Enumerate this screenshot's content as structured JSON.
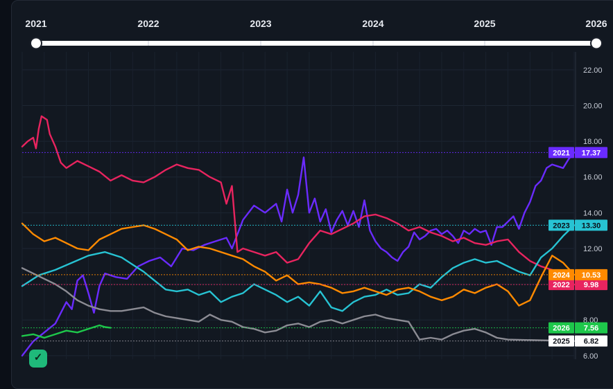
{
  "timeline": {
    "years": [
      "2021",
      "2022",
      "2023",
      "2024",
      "2025",
      "2026"
    ],
    "range_start": "2021",
    "range_end": "2026"
  },
  "colors": {
    "2021": "#6a2bff",
    "2022": "#e8245f",
    "2023": "#27c3d3",
    "2024": "#ff8a00",
    "2025": "#8c8c94",
    "2026": "#1ec84b"
  },
  "chart_data": {
    "type": "line",
    "title": "",
    "xlabel": "",
    "ylabel": "",
    "x_domain": [
      "Jan",
      "Dec"
    ],
    "ylim": [
      5.8,
      23.0
    ],
    "yticks": [
      "6.00",
      "8.00",
      "10.00",
      "12.00",
      "14.00",
      "16.00",
      "18.00",
      "20.00",
      "22.00"
    ],
    "grid": true,
    "legend": "right-axis value tags",
    "series": [
      {
        "name": "2021",
        "last_value_label": "17.37",
        "points": [
          [
            0,
            6.0
          ],
          [
            0.02,
            6.8
          ],
          [
            0.04,
            7.3
          ],
          [
            0.06,
            7.8
          ],
          [
            0.08,
            9.0
          ],
          [
            0.09,
            8.6
          ],
          [
            0.1,
            10.2
          ],
          [
            0.11,
            10.5
          ],
          [
            0.12,
            9.5
          ],
          [
            0.13,
            8.4
          ],
          [
            0.14,
            9.9
          ],
          [
            0.15,
            10.6
          ],
          [
            0.17,
            10.4
          ],
          [
            0.19,
            10.3
          ],
          [
            0.21,
            11.0
          ],
          [
            0.23,
            11.3
          ],
          [
            0.25,
            11.5
          ],
          [
            0.27,
            11.0
          ],
          [
            0.29,
            12.0
          ],
          [
            0.31,
            11.9
          ],
          [
            0.33,
            12.2
          ],
          [
            0.35,
            12.4
          ],
          [
            0.37,
            12.6
          ],
          [
            0.38,
            12.0
          ],
          [
            0.4,
            13.6
          ],
          [
            0.42,
            14.4
          ],
          [
            0.44,
            14.0
          ],
          [
            0.46,
            14.5
          ],
          [
            0.47,
            13.5
          ],
          [
            0.48,
            15.3
          ],
          [
            0.49,
            14.0
          ],
          [
            0.5,
            15.0
          ],
          [
            0.51,
            17.1
          ],
          [
            0.52,
            14.0
          ],
          [
            0.53,
            14.8
          ],
          [
            0.54,
            13.5
          ],
          [
            0.55,
            14.2
          ],
          [
            0.56,
            12.9
          ],
          [
            0.57,
            13.6
          ],
          [
            0.58,
            14.1
          ],
          [
            0.59,
            13.3
          ],
          [
            0.6,
            14.1
          ],
          [
            0.61,
            13.2
          ],
          [
            0.62,
            14.7
          ],
          [
            0.63,
            13.0
          ],
          [
            0.64,
            12.4
          ],
          [
            0.65,
            12.0
          ],
          [
            0.66,
            11.8
          ],
          [
            0.67,
            11.5
          ],
          [
            0.68,
            11.3
          ],
          [
            0.69,
            11.8
          ],
          [
            0.7,
            12.1
          ],
          [
            0.71,
            12.9
          ],
          [
            0.72,
            12.5
          ],
          [
            0.73,
            12.7
          ],
          [
            0.74,
            13.0
          ],
          [
            0.75,
            13.1
          ],
          [
            0.76,
            12.8
          ],
          [
            0.77,
            13.0
          ],
          [
            0.78,
            12.7
          ],
          [
            0.79,
            12.3
          ],
          [
            0.8,
            13.0
          ],
          [
            0.81,
            12.8
          ],
          [
            0.82,
            13.1
          ],
          [
            0.83,
            12.9
          ],
          [
            0.84,
            13.0
          ],
          [
            0.85,
            12.2
          ],
          [
            0.86,
            13.2
          ],
          [
            0.87,
            13.2
          ],
          [
            0.88,
            13.5
          ],
          [
            0.89,
            13.8
          ],
          [
            0.9,
            13.1
          ],
          [
            0.91,
            14.0
          ],
          [
            0.92,
            14.6
          ],
          [
            0.93,
            15.5
          ],
          [
            0.94,
            15.8
          ],
          [
            0.95,
            16.5
          ],
          [
            0.96,
            16.7
          ],
          [
            0.97,
            16.6
          ],
          [
            0.98,
            16.5
          ],
          [
            0.99,
            17.0
          ],
          [
            1.0,
            17.37
          ]
        ]
      },
      {
        "name": "2022",
        "last_value_label": "9.98",
        "points": [
          [
            0,
            17.7
          ],
          [
            0.01,
            18.0
          ],
          [
            0.02,
            18.2
          ],
          [
            0.025,
            17.6
          ],
          [
            0.03,
            18.7
          ],
          [
            0.035,
            19.4
          ],
          [
            0.045,
            19.2
          ],
          [
            0.05,
            18.4
          ],
          [
            0.06,
            17.7
          ],
          [
            0.07,
            16.8
          ],
          [
            0.08,
            16.5
          ],
          [
            0.1,
            16.9
          ],
          [
            0.12,
            16.6
          ],
          [
            0.14,
            16.3
          ],
          [
            0.16,
            15.8
          ],
          [
            0.18,
            16.1
          ],
          [
            0.2,
            15.8
          ],
          [
            0.22,
            15.7
          ],
          [
            0.24,
            16.0
          ],
          [
            0.26,
            16.4
          ],
          [
            0.28,
            16.7
          ],
          [
            0.3,
            16.5
          ],
          [
            0.32,
            16.4
          ],
          [
            0.34,
            16.0
          ],
          [
            0.36,
            15.7
          ],
          [
            0.37,
            14.5
          ],
          [
            0.38,
            15.5
          ],
          [
            0.39,
            11.8
          ],
          [
            0.4,
            12.0
          ],
          [
            0.42,
            11.8
          ],
          [
            0.44,
            11.6
          ],
          [
            0.46,
            11.8
          ],
          [
            0.48,
            11.2
          ],
          [
            0.5,
            11.4
          ],
          [
            0.52,
            12.3
          ],
          [
            0.54,
            13.0
          ],
          [
            0.56,
            12.8
          ],
          [
            0.58,
            13.1
          ],
          [
            0.6,
            13.4
          ],
          [
            0.62,
            13.8
          ],
          [
            0.64,
            13.9
          ],
          [
            0.66,
            13.7
          ],
          [
            0.68,
            13.4
          ],
          [
            0.7,
            13.0
          ],
          [
            0.72,
            13.2
          ],
          [
            0.74,
            12.9
          ],
          [
            0.76,
            12.7
          ],
          [
            0.78,
            12.4
          ],
          [
            0.8,
            12.6
          ],
          [
            0.82,
            12.3
          ],
          [
            0.84,
            12.2
          ],
          [
            0.86,
            12.4
          ],
          [
            0.88,
            12.5
          ],
          [
            0.9,
            11.8
          ],
          [
            0.92,
            11.3
          ],
          [
            0.94,
            11.0
          ],
          [
            0.96,
            10.8
          ],
          [
            0.98,
            10.6
          ],
          [
            1.0,
            9.98
          ]
        ]
      },
      {
        "name": "2023",
        "last_value_label": "13.30",
        "points": [
          [
            0,
            9.9
          ],
          [
            0.03,
            10.5
          ],
          [
            0.06,
            10.8
          ],
          [
            0.09,
            11.2
          ],
          [
            0.12,
            11.6
          ],
          [
            0.15,
            11.8
          ],
          [
            0.18,
            11.5
          ],
          [
            0.2,
            11.1
          ],
          [
            0.22,
            10.7
          ],
          [
            0.24,
            10.2
          ],
          [
            0.26,
            9.7
          ],
          [
            0.28,
            9.6
          ],
          [
            0.3,
            9.7
          ],
          [
            0.32,
            9.4
          ],
          [
            0.34,
            9.6
          ],
          [
            0.36,
            9.0
          ],
          [
            0.38,
            9.3
          ],
          [
            0.4,
            9.5
          ],
          [
            0.42,
            10.0
          ],
          [
            0.44,
            9.7
          ],
          [
            0.46,
            9.4
          ],
          [
            0.48,
            9.0
          ],
          [
            0.5,
            9.3
          ],
          [
            0.52,
            8.8
          ],
          [
            0.54,
            9.6
          ],
          [
            0.56,
            8.7
          ],
          [
            0.58,
            8.5
          ],
          [
            0.6,
            9.0
          ],
          [
            0.62,
            9.3
          ],
          [
            0.64,
            9.4
          ],
          [
            0.66,
            9.7
          ],
          [
            0.68,
            9.4
          ],
          [
            0.7,
            9.5
          ],
          [
            0.72,
            10.0
          ],
          [
            0.74,
            9.8
          ],
          [
            0.76,
            10.4
          ],
          [
            0.78,
            10.9
          ],
          [
            0.8,
            11.2
          ],
          [
            0.82,
            11.4
          ],
          [
            0.84,
            11.2
          ],
          [
            0.86,
            11.3
          ],
          [
            0.88,
            11.0
          ],
          [
            0.9,
            10.7
          ],
          [
            0.92,
            10.5
          ],
          [
            0.94,
            11.5
          ],
          [
            0.96,
            12.0
          ],
          [
            0.98,
            12.7
          ],
          [
            1.0,
            13.3
          ]
        ]
      },
      {
        "name": "2024",
        "last_value_label": "10.53",
        "points": [
          [
            0,
            13.4
          ],
          [
            0.02,
            12.8
          ],
          [
            0.04,
            12.4
          ],
          [
            0.06,
            12.6
          ],
          [
            0.08,
            12.3
          ],
          [
            0.1,
            12.0
          ],
          [
            0.12,
            11.9
          ],
          [
            0.14,
            12.5
          ],
          [
            0.16,
            12.8
          ],
          [
            0.18,
            13.1
          ],
          [
            0.2,
            13.2
          ],
          [
            0.22,
            13.3
          ],
          [
            0.24,
            13.1
          ],
          [
            0.26,
            12.8
          ],
          [
            0.28,
            12.5
          ],
          [
            0.3,
            11.9
          ],
          [
            0.32,
            12.1
          ],
          [
            0.34,
            12.0
          ],
          [
            0.36,
            11.8
          ],
          [
            0.38,
            11.6
          ],
          [
            0.4,
            11.4
          ],
          [
            0.42,
            11.0
          ],
          [
            0.44,
            10.7
          ],
          [
            0.46,
            10.2
          ],
          [
            0.48,
            10.5
          ],
          [
            0.5,
            10.0
          ],
          [
            0.52,
            10.1
          ],
          [
            0.54,
            10.0
          ],
          [
            0.56,
            9.8
          ],
          [
            0.58,
            9.5
          ],
          [
            0.6,
            9.6
          ],
          [
            0.62,
            9.8
          ],
          [
            0.64,
            9.6
          ],
          [
            0.66,
            9.4
          ],
          [
            0.68,
            9.7
          ],
          [
            0.7,
            9.8
          ],
          [
            0.72,
            9.6
          ],
          [
            0.74,
            9.3
          ],
          [
            0.76,
            9.1
          ],
          [
            0.78,
            9.3
          ],
          [
            0.8,
            9.7
          ],
          [
            0.82,
            9.5
          ],
          [
            0.84,
            9.8
          ],
          [
            0.86,
            10.0
          ],
          [
            0.88,
            9.6
          ],
          [
            0.9,
            8.8
          ],
          [
            0.92,
            9.1
          ],
          [
            0.94,
            10.4
          ],
          [
            0.96,
            11.6
          ],
          [
            0.98,
            11.2
          ],
          [
            1.0,
            10.53
          ]
        ]
      },
      {
        "name": "2025",
        "last_value_label": "6.82",
        "points": [
          [
            0,
            10.9
          ],
          [
            0.02,
            10.6
          ],
          [
            0.04,
            10.3
          ],
          [
            0.06,
            10.0
          ],
          [
            0.08,
            9.6
          ],
          [
            0.1,
            9.1
          ],
          [
            0.12,
            8.8
          ],
          [
            0.14,
            8.6
          ],
          [
            0.16,
            8.5
          ],
          [
            0.18,
            8.5
          ],
          [
            0.2,
            8.6
          ],
          [
            0.22,
            8.7
          ],
          [
            0.24,
            8.4
          ],
          [
            0.26,
            8.2
          ],
          [
            0.28,
            8.1
          ],
          [
            0.3,
            8.0
          ],
          [
            0.32,
            7.9
          ],
          [
            0.34,
            8.3
          ],
          [
            0.36,
            8.0
          ],
          [
            0.38,
            7.9
          ],
          [
            0.4,
            7.6
          ],
          [
            0.42,
            7.5
          ],
          [
            0.44,
            7.3
          ],
          [
            0.46,
            7.4
          ],
          [
            0.48,
            7.7
          ],
          [
            0.5,
            7.8
          ],
          [
            0.52,
            7.6
          ],
          [
            0.54,
            7.9
          ],
          [
            0.56,
            8.0
          ],
          [
            0.58,
            7.8
          ],
          [
            0.6,
            8.0
          ],
          [
            0.62,
            8.2
          ],
          [
            0.64,
            8.3
          ],
          [
            0.66,
            8.1
          ],
          [
            0.68,
            8.0
          ],
          [
            0.7,
            7.9
          ],
          [
            0.72,
            6.9
          ],
          [
            0.74,
            7.0
          ],
          [
            0.76,
            6.9
          ],
          [
            0.78,
            7.2
          ],
          [
            0.8,
            7.4
          ],
          [
            0.82,
            7.5
          ],
          [
            0.84,
            7.3
          ],
          [
            0.86,
            7.0
          ],
          [
            0.88,
            6.9
          ],
          [
            1.0,
            6.82
          ]
        ]
      },
      {
        "name": "2026",
        "last_value_label": "7.56",
        "points": [
          [
            0,
            7.1
          ],
          [
            0.02,
            7.2
          ],
          [
            0.04,
            7.0
          ],
          [
            0.06,
            7.2
          ],
          [
            0.08,
            7.4
          ],
          [
            0.1,
            7.3
          ],
          [
            0.12,
            7.5
          ],
          [
            0.14,
            7.7
          ],
          [
            0.15,
            7.6
          ],
          [
            0.16,
            7.56
          ]
        ]
      }
    ]
  }
}
